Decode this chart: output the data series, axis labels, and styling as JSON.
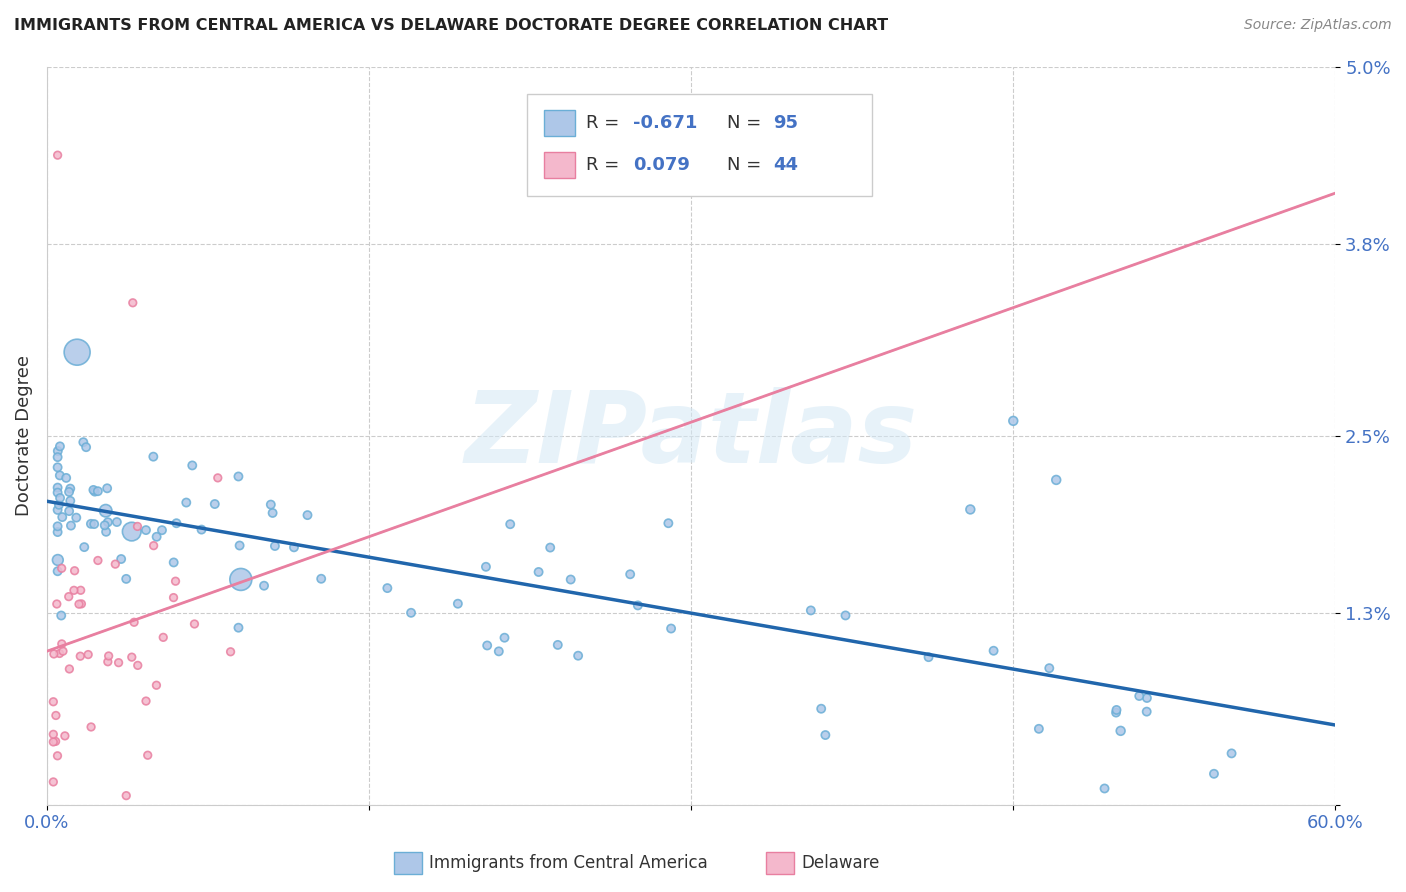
{
  "title": "IMMIGRANTS FROM CENTRAL AMERICA VS DELAWARE DOCTORATE DEGREE CORRELATION CHART",
  "source": "Source: ZipAtlas.com",
  "xlabel_blue": "Immigrants from Central America",
  "xlabel_pink": "Delaware",
  "ylabel": "Doctorate Degree",
  "xlim": [
    0.0,
    0.6
  ],
  "ylim": [
    0.0,
    0.05
  ],
  "background_color": "#ffffff",
  "blue_scatter_facecolor": "#aec7e8",
  "blue_scatter_edgecolor": "#6baed6",
  "pink_scatter_facecolor": "#f4b8cc",
  "pink_scatter_edgecolor": "#e87fa0",
  "legend_R_blue": "-0.671",
  "legend_N_blue": "95",
  "legend_R_pink": "0.079",
  "legend_N_pink": "44",
  "blue_line_color": "#2166ac",
  "pink_line_color": "#e87fa0",
  "watermark": "ZIPatlas",
  "text_color": "#4472c4",
  "label_color": "#333333",
  "grid_color": "#cccccc"
}
